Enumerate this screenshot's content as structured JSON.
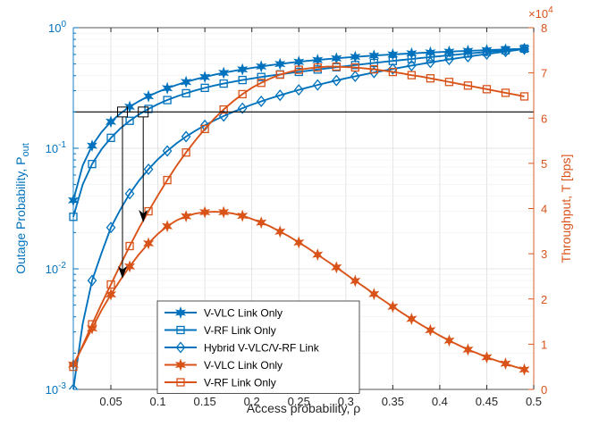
{
  "chart_data": {
    "type": "line",
    "xlabel": "Access probability, ρ",
    "ylabel_left_main": "Outage Probability, P",
    "ylabel_left_sub": "out",
    "ylabel_right": "Throughput, T [bps]",
    "right_exponent_base": "×10",
    "right_exponent_power": "4",
    "xlim": [
      0.01,
      0.5
    ],
    "ylim_left": [
      0.001,
      1
    ],
    "left_scale": "log",
    "ylim_right": [
      0,
      80000
    ],
    "right_scale": "linear",
    "grid": true,
    "legend_position": "bottom-center",
    "x_ticks": [
      {
        "value": 0.05,
        "label": "0.05"
      },
      {
        "value": 0.1,
        "label": "0.1"
      },
      {
        "value": 0.15,
        "label": "0.15"
      },
      {
        "value": 0.2,
        "label": "0.2"
      },
      {
        "value": 0.25,
        "label": "0.25"
      },
      {
        "value": 0.3,
        "label": "0.3"
      },
      {
        "value": 0.35,
        "label": "0.35"
      },
      {
        "value": 0.4,
        "label": "0.4"
      },
      {
        "value": 0.45,
        "label": "0.45"
      },
      {
        "value": 0.5,
        "label": "0.5"
      }
    ],
    "left_ticks": [
      {
        "exp": 0,
        "base": "10",
        "power": "0"
      },
      {
        "exp": -1,
        "base": "10",
        "power": "-1"
      },
      {
        "exp": -2,
        "base": "10",
        "power": "-2"
      },
      {
        "exp": -3,
        "base": "10",
        "power": "-3"
      }
    ],
    "right_ticks": [
      {
        "value": 0,
        "label": "0"
      },
      {
        "value": 10000,
        "label": "1"
      },
      {
        "value": 20000,
        "label": "2"
      },
      {
        "value": 30000,
        "label": "3"
      },
      {
        "value": 40000,
        "label": "4"
      },
      {
        "value": 50000,
        "label": "5"
      },
      {
        "value": 60000,
        "label": "6"
      },
      {
        "value": 70000,
        "label": "7"
      },
      {
        "value": 80000,
        "label": "8"
      }
    ],
    "x": [
      0.01,
      0.02,
      0.03,
      0.04,
      0.05,
      0.06,
      0.07,
      0.08,
      0.09,
      0.1,
      0.11,
      0.12,
      0.13,
      0.14,
      0.15,
      0.16,
      0.17,
      0.18,
      0.19,
      0.2,
      0.21,
      0.22,
      0.23,
      0.24,
      0.25,
      0.26,
      0.27,
      0.28,
      0.29,
      0.3,
      0.31,
      0.32,
      0.33,
      0.34,
      0.35,
      0.36,
      0.37,
      0.38,
      0.39,
      0.4,
      0.41,
      0.42,
      0.43,
      0.44,
      0.45,
      0.46,
      0.47,
      0.48,
      0.49
    ],
    "threshold": 0.2,
    "series": [
      {
        "name": "V-VLC Link Only",
        "axis": "left",
        "marker": "star",
        "color": "#0072BD",
        "values": [
          0.037,
          0.072,
          0.105,
          0.136,
          0.166,
          0.194,
          0.221,
          0.246,
          0.27,
          0.293,
          0.315,
          0.335,
          0.355,
          0.373,
          0.39,
          0.407,
          0.422,
          0.437,
          0.451,
          0.464,
          0.477,
          0.489,
          0.5,
          0.511,
          0.521,
          0.531,
          0.54,
          0.549,
          0.557,
          0.565,
          0.573,
          0.58,
          0.587,
          0.594,
          0.6,
          0.606,
          0.612,
          0.618,
          0.623,
          0.628,
          0.633,
          0.638,
          0.643,
          0.647,
          0.652,
          0.656,
          0.66,
          0.664,
          0.668
        ]
      },
      {
        "name": "V-RF Link Only",
        "axis": "left",
        "marker": "square",
        "color": "#0072BD",
        "values": [
          0.027,
          0.05,
          0.074,
          0.098,
          0.122,
          0.146,
          0.169,
          0.191,
          0.212,
          0.232,
          0.251,
          0.269,
          0.286,
          0.302,
          0.317,
          0.331,
          0.344,
          0.356,
          0.368,
          0.379,
          0.39,
          0.4,
          0.41,
          0.42,
          0.43,
          0.44,
          0.45,
          0.46,
          0.47,
          0.48,
          0.49,
          0.5,
          0.51,
          0.52,
          0.53,
          0.54,
          0.55,
          0.56,
          0.57,
          0.58,
          0.59,
          0.6,
          0.61,
          0.62,
          0.63,
          0.64,
          0.65,
          0.66,
          0.67
        ]
      },
      {
        "name": "Hybrid V-VLC/V-RF Link",
        "axis": "left",
        "marker": "diamond",
        "color": "#0072BD",
        "values": [
          0.001,
          0.0035,
          0.008,
          0.0135,
          0.022,
          0.031,
          0.042,
          0.054,
          0.067,
          0.081,
          0.095,
          0.11,
          0.125,
          0.14,
          0.155,
          0.17,
          0.185,
          0.2,
          0.215,
          0.23,
          0.245,
          0.26,
          0.275,
          0.29,
          0.305,
          0.32,
          0.335,
          0.35,
          0.365,
          0.38,
          0.395,
          0.41,
          0.425,
          0.44,
          0.455,
          0.47,
          0.485,
          0.5,
          0.515,
          0.53,
          0.545,
          0.56,
          0.575,
          0.59,
          0.605,
          0.62,
          0.635,
          0.65,
          0.665
        ]
      },
      {
        "name": "V-VLC Link Only",
        "axis": "right",
        "marker": "star",
        "color": "#D95319",
        "values": [
          5500,
          9500,
          13500,
          17500,
          21000,
          24200,
          27200,
          29900,
          32300,
          34400,
          36100,
          37400,
          38300,
          38900,
          39200,
          39300,
          39200,
          38900,
          38400,
          37700,
          36900,
          36000,
          34900,
          33800,
          32500,
          31200,
          29800,
          28400,
          27000,
          25500,
          24000,
          22600,
          21100,
          19700,
          18300,
          16900,
          15600,
          14300,
          13100,
          11900,
          10800,
          9800,
          8800,
          8000,
          7100,
          6400,
          5700,
          5000,
          4400
        ]
      },
      {
        "name": "V-RF Link Only",
        "axis": "right",
        "marker": "square",
        "color": "#D95319",
        "values": [
          5000,
          9700,
          14400,
          18900,
          23200,
          27500,
          31700,
          35700,
          39400,
          42900,
          46300,
          49500,
          52400,
          55100,
          57600,
          59900,
          61900,
          63700,
          65300,
          66700,
          67800,
          68800,
          69600,
          70200,
          70700,
          71000,
          71200,
          71400,
          71400,
          71300,
          71200,
          71000,
          70800,
          70500,
          70200,
          69900,
          69500,
          69200,
          68800,
          68400,
          68000,
          67600,
          67200,
          66800,
          66400,
          66000,
          65600,
          65200,
          64800
        ]
      }
    ],
    "legend_labels": [
      "V-VLC Link Only",
      "V-RF Link Only",
      "Hybrid V-VLC/V-RF Link",
      "V-VLC Link Only",
      "V-RF Link Only"
    ]
  }
}
